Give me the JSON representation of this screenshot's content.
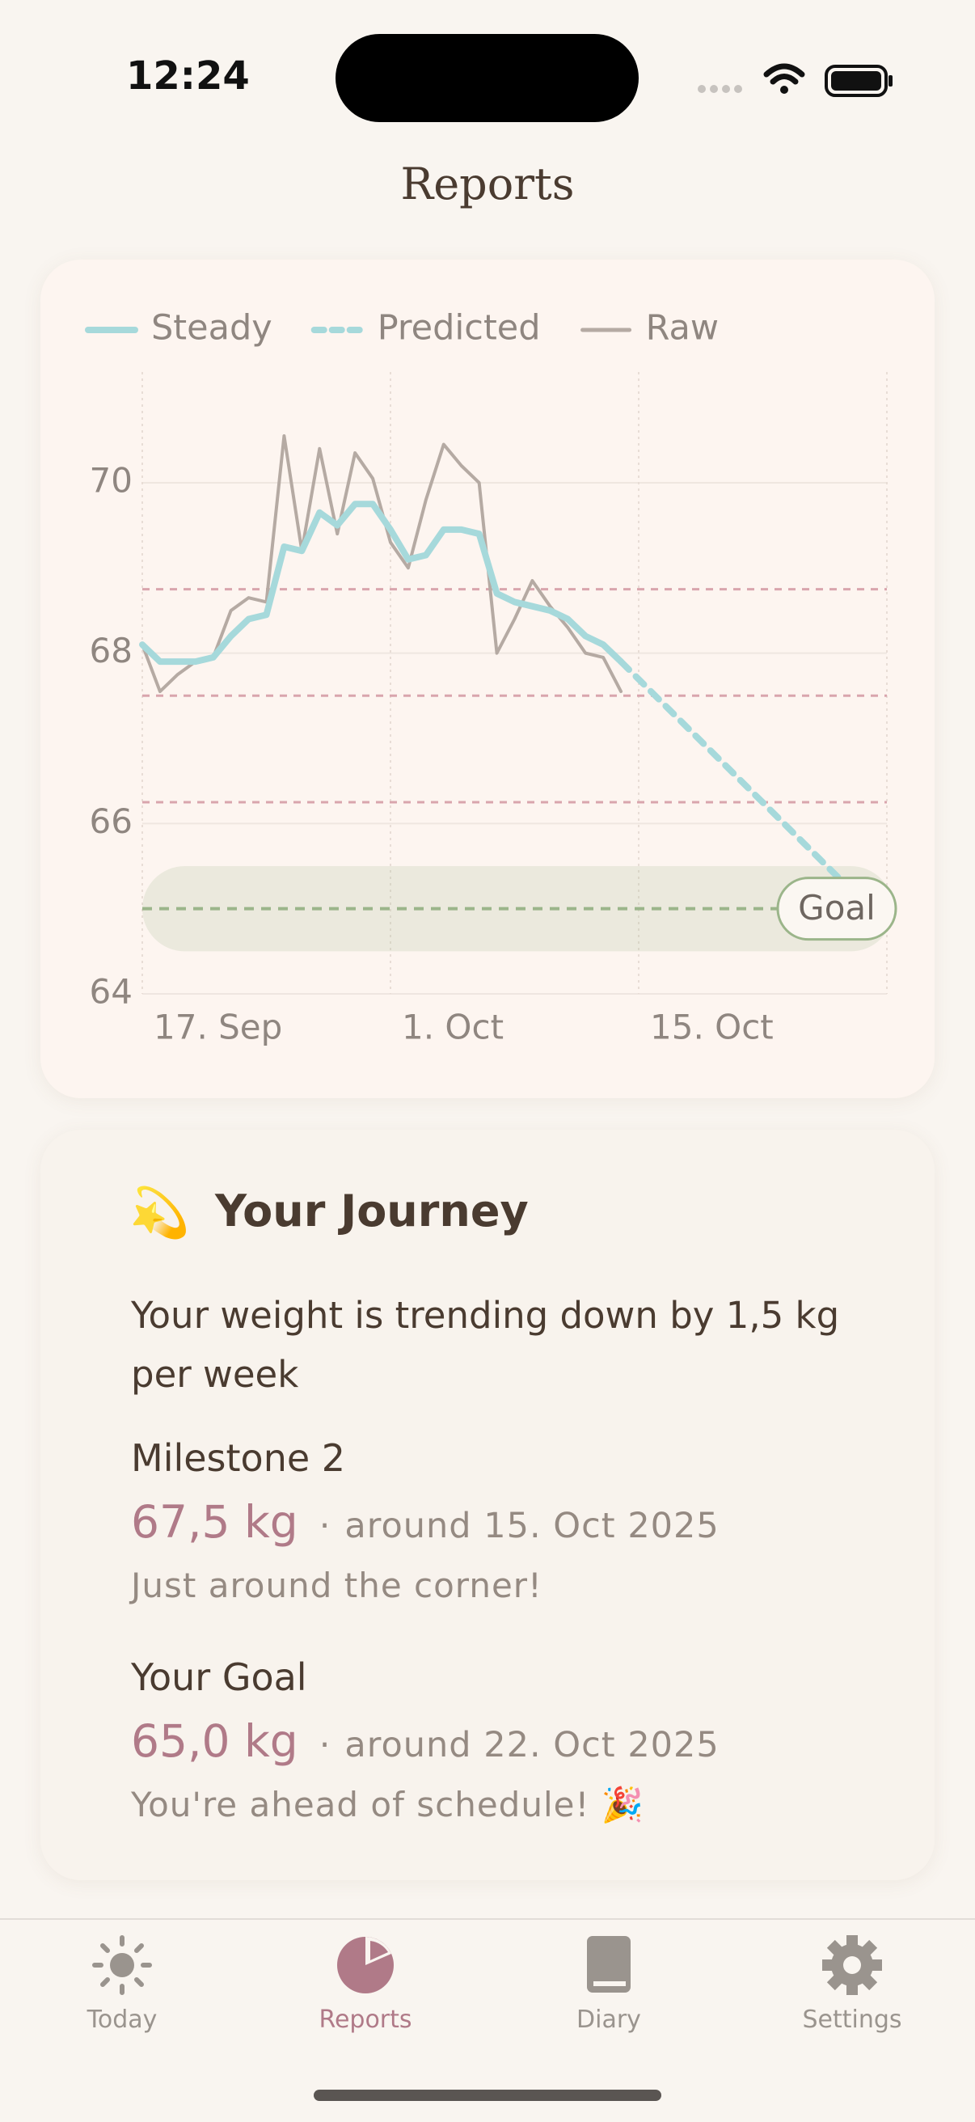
{
  "status_bar": {
    "time": "12:24"
  },
  "header": {
    "title": "Reports"
  },
  "chart_data": {
    "type": "line",
    "series": [
      {
        "name": "Steady",
        "color": "#a6d9db",
        "x": [
          0,
          1,
          2,
          3,
          4,
          5,
          6,
          7,
          8,
          9,
          10,
          11,
          12,
          13,
          14,
          15,
          16,
          17,
          18,
          19,
          20,
          21,
          22,
          23,
          24,
          25,
          26,
          27
        ],
        "values": [
          68.1,
          67.9,
          67.9,
          67.9,
          67.95,
          68.2,
          68.4,
          68.45,
          69.25,
          69.2,
          69.65,
          69.5,
          69.75,
          69.75,
          69.45,
          69.1,
          69.15,
          69.45,
          69.45,
          69.4,
          68.7,
          68.6,
          68.55,
          68.5,
          68.4,
          68.2,
          68.1,
          67.9
        ]
      },
      {
        "name": "Predicted",
        "color": "#a6d9db",
        "dash": true,
        "x": [
          27,
          42
        ],
        "values": [
          67.9,
          64.8
        ]
      },
      {
        "name": "Raw",
        "color": "#b5aaa3",
        "x": [
          0,
          1,
          2,
          3,
          4,
          5,
          6,
          7,
          8,
          9,
          10,
          11,
          12,
          13,
          14,
          15,
          16,
          17,
          18,
          19,
          20,
          21,
          22,
          23,
          24,
          25,
          26,
          27
        ],
        "values": [
          68.1,
          67.55,
          67.75,
          67.9,
          67.95,
          68.5,
          68.65,
          68.6,
          70.55,
          69.2,
          70.4,
          69.4,
          70.35,
          70.05,
          69.3,
          69.0,
          69.8,
          70.45,
          70.2,
          70.0,
          68.0,
          68.4,
          68.85,
          68.55,
          68.3,
          68.0,
          67.95,
          67.55
        ]
      }
    ],
    "xlim": [
      0,
      42
    ],
    "xticks": [
      {
        "value": 0,
        "label": "17. Sep"
      },
      {
        "value": 14,
        "label": "1. Oct"
      },
      {
        "value": 28,
        "label": "15. Oct"
      }
    ],
    "ylim": [
      64,
      71.3
    ],
    "yticks": [
      64,
      66,
      68,
      70
    ],
    "grid": true,
    "reference_lines": [
      {
        "value": 68.75
      },
      {
        "value": 67.5
      },
      {
        "value": 66.25
      }
    ],
    "reference_color": "#d9a5ad",
    "goal": {
      "label": "Goal",
      "value": 65,
      "color": "#9bb58a",
      "band": [
        64.5,
        65.5
      ]
    }
  },
  "journey": {
    "icon": "💫",
    "title": "Your Journey",
    "summary": "Your weight is trending down by 1,5 kg per week",
    "milestones": [
      {
        "name": "Milestone 2",
        "weight": "67,5 kg",
        "separator": "·",
        "date": "around 15. Oct 2025",
        "note": "Just around the corner!"
      },
      {
        "name": "Your Goal",
        "weight": "65,0 kg",
        "separator": "·",
        "date": "around 22. Oct 2025",
        "note": "You're ahead of schedule! 🎉"
      }
    ]
  },
  "tab_bar": {
    "items": [
      {
        "label": "Today"
      },
      {
        "label": "Reports"
      },
      {
        "label": "Diary"
      },
      {
        "label": "Settings"
      }
    ],
    "active": 1
  }
}
